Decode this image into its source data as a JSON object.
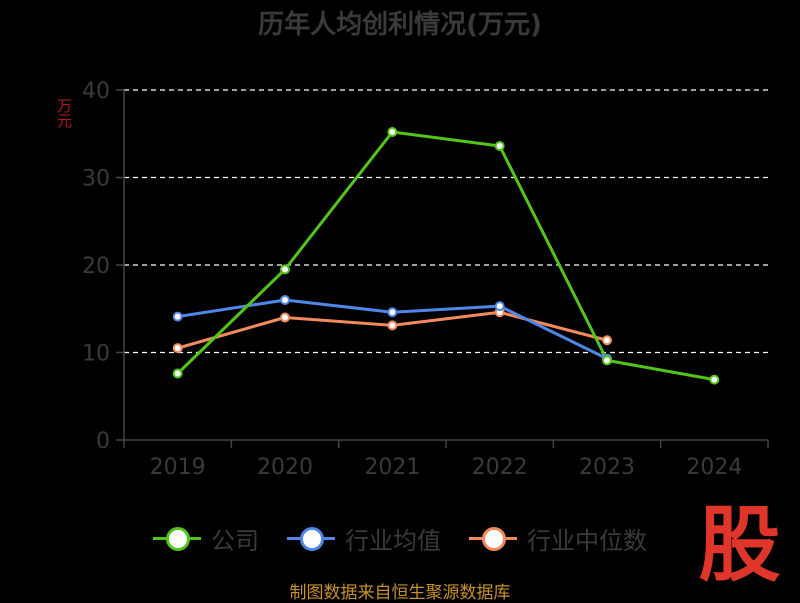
{
  "chart_data": {
    "type": "line",
    "title": "历年人均创利情况(万元)",
    "ylabel": "万元",
    "xlabel": "",
    "categories": [
      "2019",
      "2020",
      "2021",
      "2022",
      "2023",
      "2024"
    ],
    "ylim": [
      0,
      40
    ],
    "yticks": [
      0,
      10,
      20,
      30,
      40
    ],
    "grid": true,
    "legend_position": "bottom",
    "series": [
      {
        "name": "公司",
        "color": "#52c41a",
        "values": [
          7.6,
          19.5,
          35.2,
          33.6,
          9.1,
          6.9
        ]
      },
      {
        "name": "行业均值",
        "color": "#4f86e8",
        "values": [
          14.1,
          16.0,
          14.6,
          15.3,
          9.3,
          null
        ]
      },
      {
        "name": "行业中位数",
        "color": "#f28a5c",
        "values": [
          10.5,
          14.0,
          13.1,
          14.6,
          11.4,
          null
        ]
      }
    ]
  },
  "watermark": "股",
  "source": "制图数据来自恒生聚源数据库"
}
